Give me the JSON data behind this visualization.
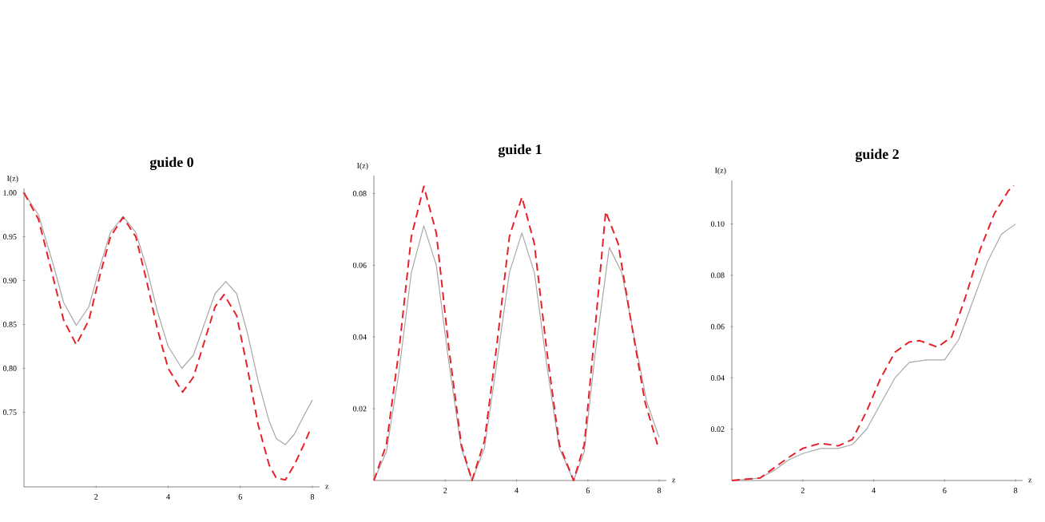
{
  "chart_data": [
    {
      "type": "line",
      "title": "guide 0",
      "xlabel": "z",
      "ylabel": "I(z)",
      "xlim": [
        0,
        8.2
      ],
      "ylim": [
        0.665,
        1.005
      ],
      "xticks": [
        2,
        4,
        6,
        8
      ],
      "yticks": [
        {
          "value": 0.75,
          "label": "0.75"
        },
        {
          "value": 0.8,
          "label": "0.80"
        },
        {
          "value": 0.85,
          "label": "0.85"
        },
        {
          "value": 0.9,
          "label": "0.90"
        },
        {
          "value": 0.95,
          "label": "0.95"
        },
        {
          "value": 1.0,
          "label": "1.00"
        }
      ],
      "series": [
        {
          "color": "#a8a8a8",
          "line_style": "solid",
          "x": [
            0,
            0.4,
            0.8,
            1.1,
            1.45,
            1.8,
            2.1,
            2.4,
            2.75,
            3.1,
            3.4,
            3.7,
            4.0,
            4.38,
            4.7,
            5.0,
            5.3,
            5.6,
            5.9,
            6.2,
            6.5,
            6.8,
            7.0,
            7.25,
            7.5,
            7.75,
            8.0
          ],
          "values": [
            1.0,
            0.975,
            0.92,
            0.875,
            0.849,
            0.87,
            0.915,
            0.955,
            0.973,
            0.955,
            0.915,
            0.865,
            0.825,
            0.8,
            0.815,
            0.85,
            0.885,
            0.899,
            0.885,
            0.84,
            0.785,
            0.74,
            0.72,
            0.713,
            0.725,
            0.745,
            0.764
          ]
        },
        {
          "color": "#e8202a",
          "line_style": "dashed",
          "x": [
            0,
            0.4,
            0.8,
            1.1,
            1.45,
            1.8,
            2.1,
            2.4,
            2.75,
            3.1,
            3.4,
            3.7,
            4.0,
            4.4,
            4.7,
            5.0,
            5.3,
            5.55,
            5.9,
            6.2,
            6.5,
            6.8,
            7.0,
            7.25,
            7.5,
            7.75,
            7.95
          ],
          "values": [
            1.0,
            0.97,
            0.905,
            0.855,
            0.827,
            0.855,
            0.905,
            0.95,
            0.972,
            0.95,
            0.9,
            0.845,
            0.8,
            0.773,
            0.79,
            0.83,
            0.87,
            0.884,
            0.86,
            0.8,
            0.735,
            0.69,
            0.675,
            0.673,
            0.69,
            0.712,
            0.731
          ]
        }
      ]
    },
    {
      "type": "line",
      "title": "guide 1",
      "xlabel": "z",
      "ylabel": "I(z)",
      "xlim": [
        0,
        8.2
      ],
      "ylim": [
        0,
        0.085
      ],
      "xticks": [
        2,
        4,
        6,
        8
      ],
      "yticks": [
        0.02,
        0.04,
        0.06,
        0.08
      ],
      "series": [
        {
          "color": "#a8a8a8",
          "line_style": "solid",
          "x": [
            0,
            0.35,
            0.7,
            1.05,
            1.4,
            1.75,
            2.1,
            2.45,
            2.75,
            3.1,
            3.45,
            3.8,
            4.15,
            4.5,
            4.85,
            5.2,
            5.6,
            5.9,
            6.2,
            6.6,
            6.95,
            7.3,
            7.65,
            8.0
          ],
          "values": [
            0,
            0.008,
            0.03,
            0.058,
            0.071,
            0.06,
            0.033,
            0.009,
            0,
            0.009,
            0.033,
            0.058,
            0.069,
            0.058,
            0.032,
            0.009,
            0,
            0.008,
            0.035,
            0.065,
            0.058,
            0.04,
            0.022,
            0.012
          ]
        },
        {
          "color": "#e8202a",
          "line_style": "dashed",
          "x": [
            0,
            0.35,
            0.7,
            1.05,
            1.4,
            1.75,
            2.1,
            2.45,
            2.75,
            3.1,
            3.45,
            3.8,
            4.15,
            4.5,
            4.85,
            5.2,
            5.6,
            5.9,
            6.2,
            6.5,
            6.85,
            7.2,
            7.6,
            7.95
          ],
          "values": [
            0,
            0.01,
            0.036,
            0.068,
            0.082,
            0.069,
            0.037,
            0.01,
            0,
            0.011,
            0.038,
            0.068,
            0.079,
            0.066,
            0.036,
            0.01,
            0,
            0.01,
            0.042,
            0.075,
            0.066,
            0.045,
            0.022,
            0.01
          ]
        }
      ]
    },
    {
      "type": "line",
      "title": "guide 2",
      "xlabel": "z",
      "ylabel": "I(z)",
      "xlim": [
        0,
        8.2
      ],
      "ylim": [
        0,
        0.117
      ],
      "xticks": [
        2,
        4,
        6,
        8
      ],
      "yticks": [
        0.02,
        0.04,
        0.06,
        0.08,
        {
          "value": 0.1,
          "label": "0.10"
        }
      ],
      "series": [
        {
          "color": "#a8a8a8",
          "line_style": "solid",
          "x": [
            0,
            0.8,
            1.2,
            1.6,
            2.0,
            2.5,
            3.0,
            3.4,
            3.8,
            4.2,
            4.6,
            5.0,
            5.5,
            6.0,
            6.4,
            6.8,
            7.2,
            7.6,
            8.0
          ],
          "values": [
            0,
            0.001,
            0.004,
            0.008,
            0.0105,
            0.0125,
            0.0125,
            0.014,
            0.02,
            0.03,
            0.04,
            0.046,
            0.047,
            0.047,
            0.055,
            0.07,
            0.085,
            0.096,
            0.1
          ]
        },
        {
          "color": "#e8202a",
          "line_style": "dashed",
          "x": [
            0,
            0.8,
            1.2,
            1.6,
            2.0,
            2.5,
            3.0,
            3.4,
            3.8,
            4.2,
            4.6,
            5.0,
            5.3,
            5.8,
            6.2,
            6.6,
            7.0,
            7.4,
            7.8,
            7.95
          ],
          "values": [
            0,
            0.001,
            0.005,
            0.009,
            0.0125,
            0.0145,
            0.0135,
            0.016,
            0.027,
            0.04,
            0.05,
            0.054,
            0.0545,
            0.052,
            0.056,
            0.072,
            0.09,
            0.104,
            0.113,
            0.115
          ]
        }
      ]
    }
  ]
}
